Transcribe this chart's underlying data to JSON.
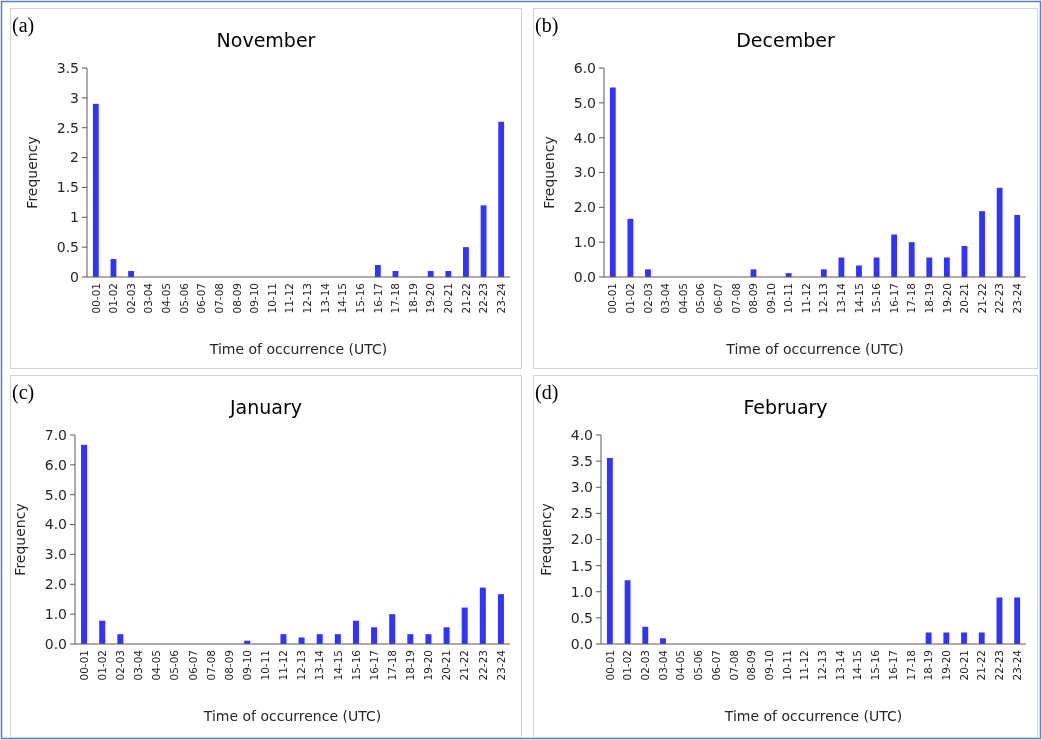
{
  "chart_data": [
    {
      "type": "bar",
      "title": "November",
      "xlabel": "Time of occurrence (UTC)",
      "ylabel": "Frequency",
      "annotations": [
        "(a)"
      ],
      "categories": [
        "00-01",
        "01-02",
        "02-03",
        "03-04",
        "04-05",
        "05-06",
        "06-07",
        "07-08",
        "08-09",
        "09-10",
        "10-11",
        "11-12",
        "12-13",
        "13-14",
        "14-15",
        "15-16",
        "16-17",
        "17-18",
        "18-19",
        "19-20",
        "20-21",
        "21-22",
        "22-23",
        "23-24"
      ],
      "values": [
        2.9,
        0.3,
        0.1,
        0,
        0,
        0,
        0,
        0,
        0,
        0,
        0,
        0,
        0,
        0,
        0,
        0,
        0.2,
        0.1,
        0,
        0.1,
        0.1,
        0.5,
        1.2,
        2.6
      ],
      "color": "#3333ff",
      "ylim": [
        0,
        3.5
      ],
      "yticks": [
        0,
        0.5,
        1,
        1.5,
        2,
        2.5,
        3,
        3.5
      ]
    },
    {
      "type": "bar",
      "title": "December",
      "xlabel": "Time of occurrence (UTC)",
      "ylabel": "Frequency",
      "annotations": [
        "(b)"
      ],
      "categories": [
        "00-01",
        "01-02",
        "02-03",
        "03-04",
        "04-05",
        "05-06",
        "06-07",
        "07-08",
        "08-09",
        "09-10",
        "10-11",
        "11-12",
        "12-13",
        "13-14",
        "14-15",
        "15-16",
        "16-17",
        "17-18",
        "18-19",
        "19-20",
        "20-21",
        "21-22",
        "22-23",
        "23-24"
      ],
      "values": [
        5.44,
        1.67,
        0.22,
        0,
        0,
        0,
        0,
        0,
        0.22,
        0,
        0.11,
        0,
        0.22,
        0.56,
        0.33,
        0.56,
        1.22,
        1.0,
        0.56,
        0.56,
        0.89,
        1.89,
        2.56,
        1.78
      ],
      "color": "#3333ff",
      "ylim": [
        0,
        6
      ],
      "yticks": [
        {
          "value": 0,
          "label": "0.0"
        },
        {
          "value": 1,
          "label": "1.0"
        },
        {
          "value": 2,
          "label": "2.0"
        },
        {
          "value": 3,
          "label": "3.0"
        },
        {
          "value": 4,
          "label": "4.0"
        },
        {
          "value": 5,
          "label": "5.0"
        },
        {
          "value": 6,
          "label": "6.0"
        }
      ]
    },
    {
      "type": "bar",
      "title": "January",
      "xlabel": "Time of occurrence (UTC)",
      "ylabel": "Frequency",
      "annotations": [
        "(c)"
      ],
      "categories": [
        "00-01",
        "01-02",
        "02-03",
        "03-04",
        "04-05",
        "05-06",
        "06-07",
        "07-08",
        "08-09",
        "09-10",
        "10-11",
        "11-12",
        "12-13",
        "13-14",
        "14-15",
        "15-16",
        "16-17",
        "17-18",
        "18-19",
        "19-20",
        "20-21",
        "21-22",
        "22-23",
        "23-24"
      ],
      "values": [
        6.67,
        0.78,
        0.33,
        0,
        0,
        0,
        0,
        0,
        0,
        0.11,
        0,
        0.33,
        0.22,
        0.33,
        0.33,
        0.78,
        0.56,
        1.0,
        0.33,
        0.33,
        0.56,
        1.22,
        1.89,
        1.67
      ],
      "color": "#3333ff",
      "ylim": [
        0,
        7
      ],
      "yticks": [
        {
          "value": 0,
          "label": "0.0"
        },
        {
          "value": 1,
          "label": "1.0"
        },
        {
          "value": 2,
          "label": "2.0"
        },
        {
          "value": 3,
          "label": "3.0"
        },
        {
          "value": 4,
          "label": "4.0"
        },
        {
          "value": 5,
          "label": "5.0"
        },
        {
          "value": 6,
          "label": "6.0"
        },
        {
          "value": 7,
          "label": "7.0"
        }
      ]
    },
    {
      "type": "bar",
      "title": "February",
      "xlabel": "Time of occurrence (UTC)",
      "ylabel": "Frequency",
      "annotations": [
        "(d)"
      ],
      "categories": [
        "00-01",
        "01-02",
        "02-03",
        "03-04",
        "04-05",
        "05-06",
        "06-07",
        "07-08",
        "08-09",
        "09-10",
        "10-11",
        "11-12",
        "12-13",
        "13-14",
        "14-15",
        "15-16",
        "16-17",
        "17-18",
        "18-19",
        "19-20",
        "20-21",
        "21-22",
        "22-23",
        "23-24"
      ],
      "values": [
        3.56,
        1.22,
        0.33,
        0.11,
        0,
        0,
        0,
        0,
        0,
        0,
        0,
        0,
        0,
        0,
        0,
        0,
        0,
        0,
        0.22,
        0.22,
        0.22,
        0.22,
        0.89,
        0.89
      ],
      "color": "#3333ff",
      "ylim": [
        0,
        4
      ],
      "yticks": [
        {
          "value": 0,
          "label": "0.0"
        },
        {
          "value": 0.5,
          "label": "0.5"
        },
        {
          "value": 1,
          "label": "1.0"
        },
        {
          "value": 1.5,
          "label": "1.5"
        },
        {
          "value": 2,
          "label": "2.0"
        },
        {
          "value": 2.5,
          "label": "2.5"
        },
        {
          "value": 3,
          "label": "3.0"
        },
        {
          "value": 3.5,
          "label": "3.5"
        },
        {
          "value": 4,
          "label": "4.0"
        }
      ]
    }
  ]
}
